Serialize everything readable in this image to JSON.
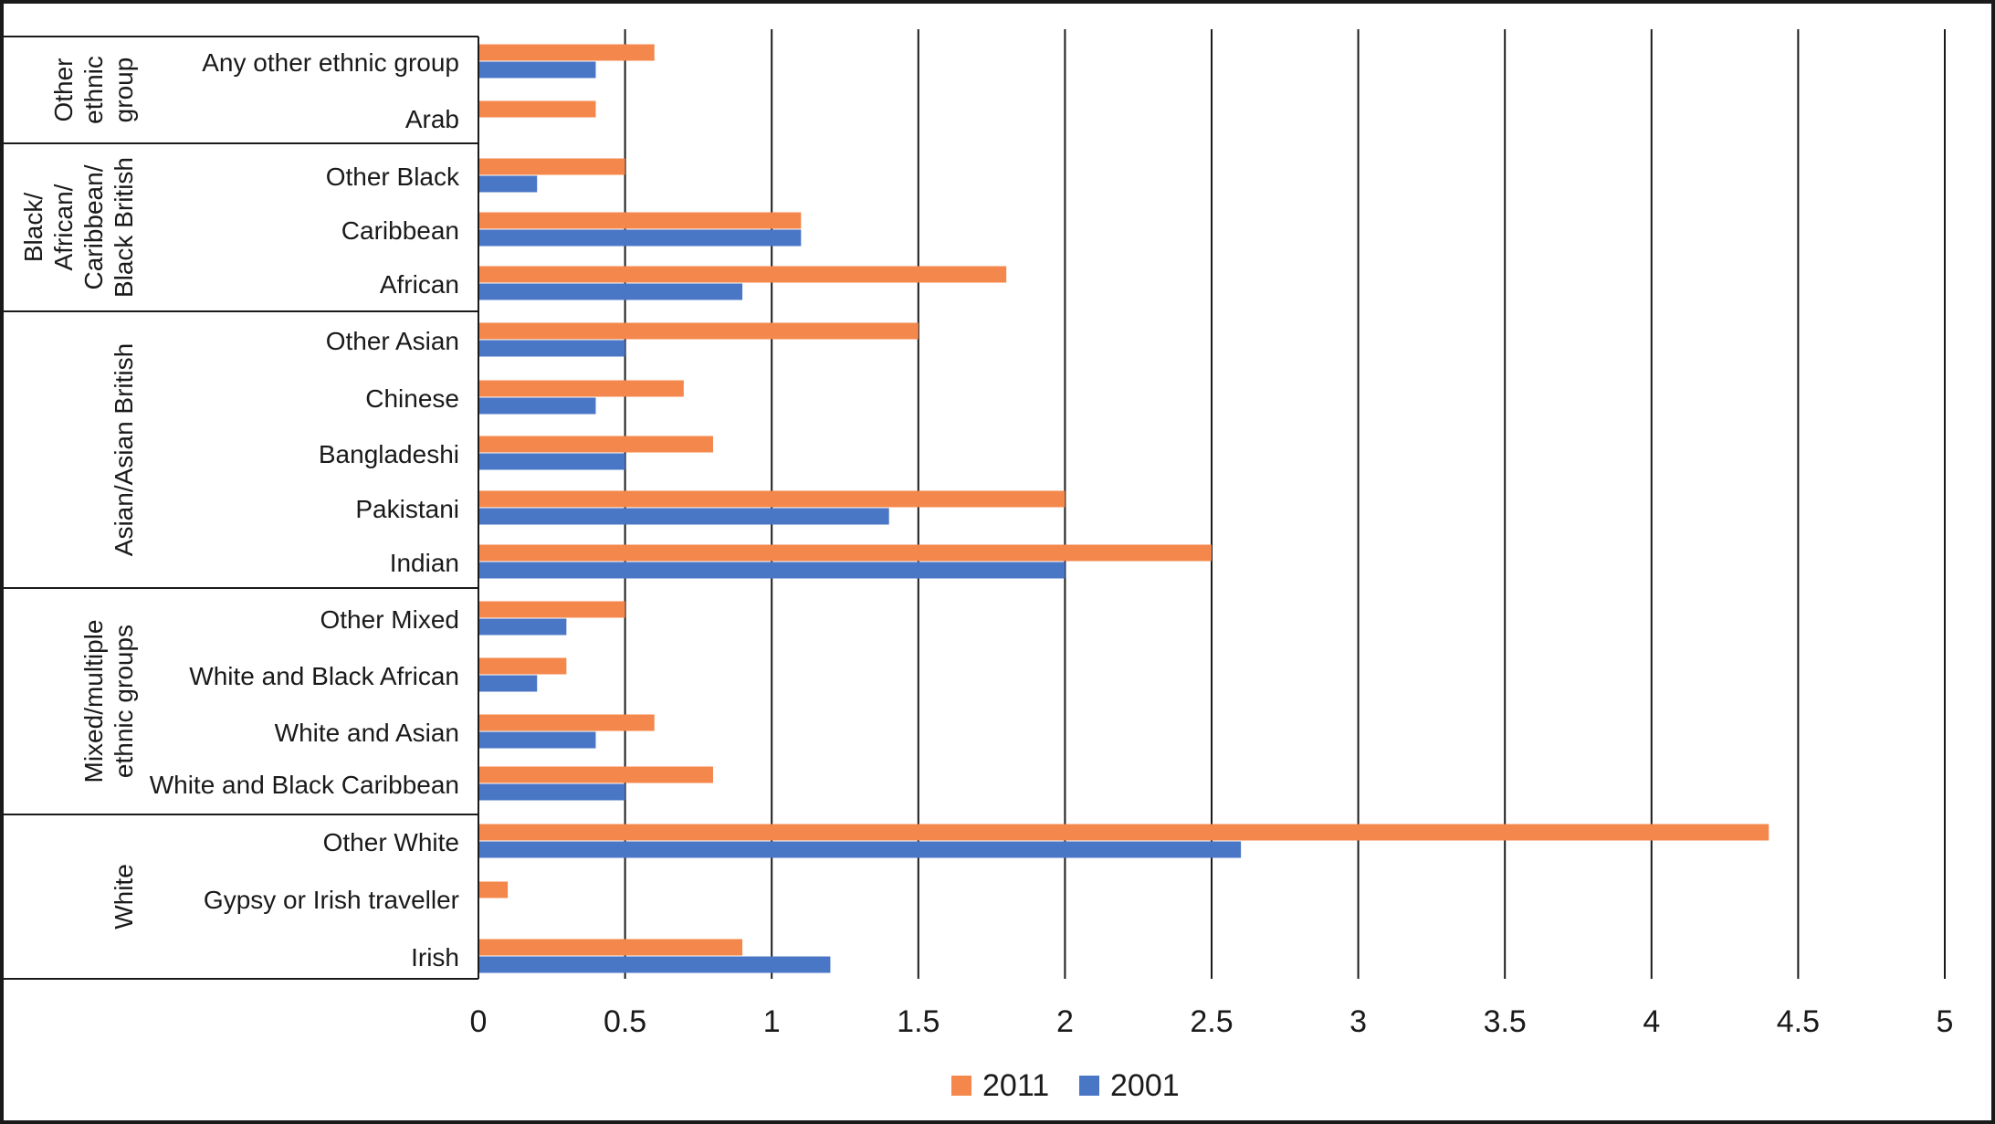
{
  "chart_data": {
    "type": "bar",
    "orientation": "horizontal",
    "xlim": [
      0,
      5
    ],
    "x_ticks": [
      "0",
      "0.5",
      "1",
      "1.5",
      "2",
      "2.5",
      "3",
      "3.5",
      "4",
      "4.5",
      "5"
    ],
    "grid": "vertical",
    "legend_position": "bottom-center",
    "series": [
      {
        "name": "2011",
        "color": "#F4874B"
      },
      {
        "name": "2001",
        "color": "#4A76C6"
      }
    ],
    "groups": [
      {
        "label_lines": [
          "Other",
          "ethnic",
          "group"
        ],
        "categories": [
          {
            "label": "Any other ethnic group",
            "v2011": 0.6,
            "v2001": 0.4
          },
          {
            "label": "Arab",
            "v2011": 0.4,
            "v2001": null
          }
        ]
      },
      {
        "label_lines": [
          "Black/",
          "African/",
          "Caribbean/",
          "Black British"
        ],
        "categories": [
          {
            "label": "Other Black",
            "v2011": 0.5,
            "v2001": 0.2
          },
          {
            "label": "Caribbean",
            "v2011": 1.1,
            "v2001": 1.1
          },
          {
            "label": "African",
            "v2011": 1.8,
            "v2001": 0.9
          }
        ]
      },
      {
        "label_lines": [
          "Asian/Asian British"
        ],
        "categories": [
          {
            "label": "Other Asian",
            "v2011": 1.5,
            "v2001": 0.5
          },
          {
            "label": "Chinese",
            "v2011": 0.7,
            "v2001": 0.4
          },
          {
            "label": "Bangladeshi",
            "v2011": 0.8,
            "v2001": 0.5
          },
          {
            "label": "Pakistani",
            "v2011": 2.0,
            "v2001": 1.4
          },
          {
            "label": "Indian",
            "v2011": 2.5,
            "v2001": 2.0
          }
        ]
      },
      {
        "label_lines": [
          "Mixed/multiple",
          "ethnic groups"
        ],
        "categories": [
          {
            "label": "Other Mixed",
            "v2011": 0.5,
            "v2001": 0.3
          },
          {
            "label": "White and Black African",
            "v2011": 0.3,
            "v2001": 0.2
          },
          {
            "label": "White and Asian",
            "v2011": 0.6,
            "v2001": 0.4
          },
          {
            "label": "White and Black Caribbean",
            "v2011": 0.8,
            "v2001": 0.5
          }
        ]
      },
      {
        "label_lines": [
          "White"
        ],
        "categories": [
          {
            "label": "Other White",
            "v2011": 4.4,
            "v2001": 2.6
          },
          {
            "label": "Gypsy or Irish traveller",
            "v2011": 0.1,
            "v2001": null
          },
          {
            "label": "Irish",
            "v2011": 0.9,
            "v2001": 1.2
          }
        ]
      }
    ]
  }
}
